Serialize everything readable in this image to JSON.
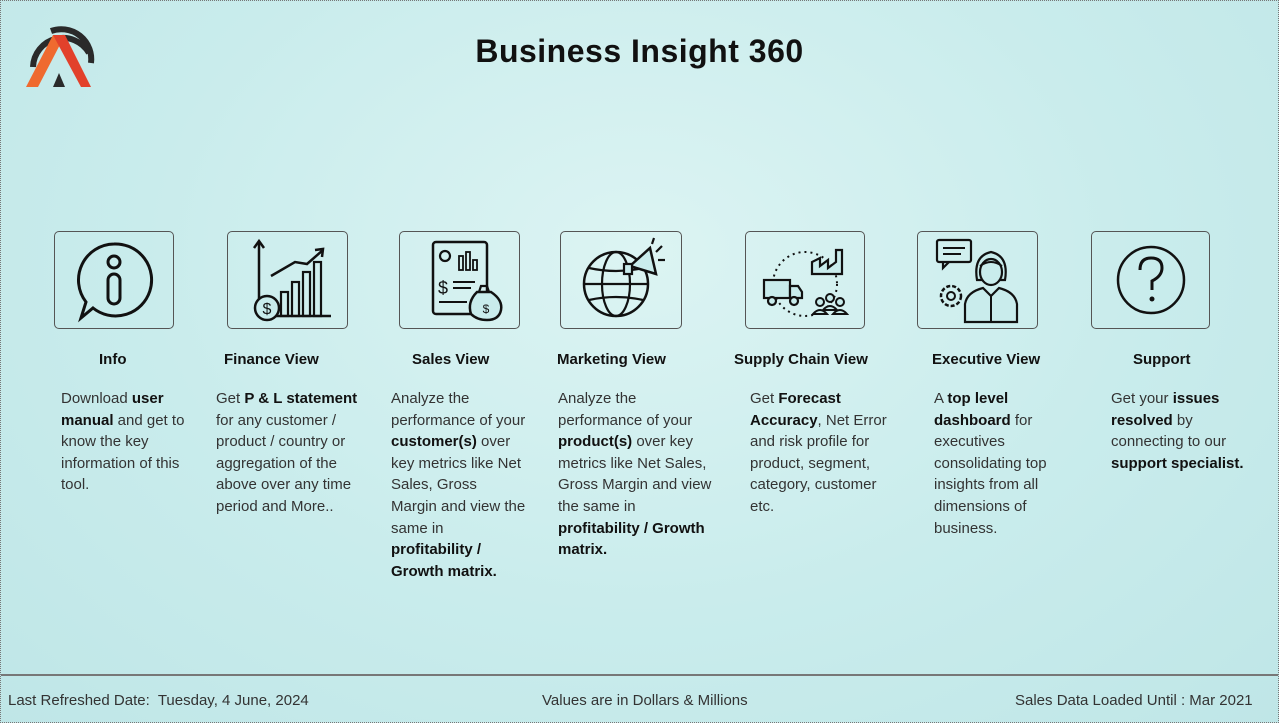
{
  "header": {
    "title": "Business Insight 360"
  },
  "cards": [
    {
      "icon": "info-icon",
      "title": "Info",
      "desc": [
        {
          "t": "Download "
        },
        {
          "t": "user manual",
          "b": true
        },
        {
          "t": " and get to know the key information of this tool."
        }
      ]
    },
    {
      "icon": "finance-chart-icon",
      "title": "Finance View",
      "desc": [
        {
          "t": "Get  "
        },
        {
          "t": "P & L statement",
          "b": true
        },
        {
          "t": " for any customer / product / country or aggregation of the above over any time period and More.."
        }
      ]
    },
    {
      "icon": "sales-report-icon",
      "title": "Sales View",
      "desc": [
        {
          "t": "Analyze the performance of your "
        },
        {
          "t": "customer(s)",
          "b": true
        },
        {
          "t": " over key metrics like Net Sales, Gross Margin and view the same in "
        },
        {
          "t": "profitability / Growth matrix.",
          "b": true
        }
      ]
    },
    {
      "icon": "globe-megaphone-icon",
      "title": "Marketing View",
      "desc": [
        {
          "t": "Analyze the performance of your "
        },
        {
          "t": "product(s)",
          "b": true
        },
        {
          "t": " over key metrics like Net Sales, Gross Margin and view the same in "
        },
        {
          "t": "profitability / Growth matrix.",
          "b": true
        }
      ]
    },
    {
      "icon": "supply-chain-icon",
      "title": "Supply Chain View",
      "desc": [
        {
          "t": "Get "
        },
        {
          "t": "Forecast Accuracy",
          "b": true
        },
        {
          "t": ", Net Error and risk profile for product, segment, category, customer etc."
        }
      ]
    },
    {
      "icon": "executive-icon",
      "title": "Executive View",
      "desc": [
        {
          "t": "A "
        },
        {
          "t": "top level dashboard",
          "b": true
        },
        {
          "t": " for executives consolidating top insights from all dimensions of business."
        }
      ]
    },
    {
      "icon": "question-mark-icon",
      "title": "Support",
      "desc": [
        {
          "t": "Get your "
        },
        {
          "t": "issues resolved",
          "b": true
        },
        {
          "t": " by connecting to our "
        },
        {
          "t": "support specialist.",
          "b": true
        }
      ]
    }
  ],
  "footer": {
    "refreshed_label": "Last Refreshed Date:",
    "refreshed_value": "Tuesday, 4 June, 2024",
    "units_note": "Values are in Dollars & Millions",
    "loaded_until": "Sales Data Loaded Until : Mar 2021"
  },
  "colors": {
    "logo_orange": "#ef6a2f",
    "logo_red": "#e2412b",
    "logo_dark": "#2a2a2a"
  }
}
